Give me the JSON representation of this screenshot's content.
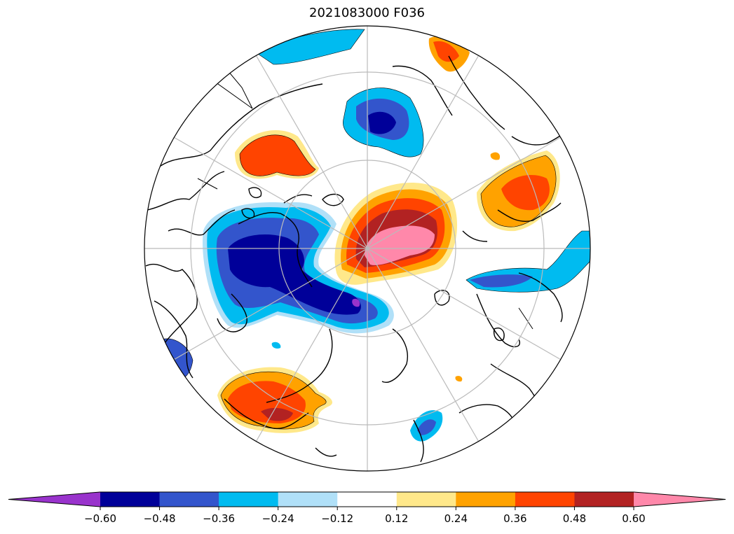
{
  "title": "2021083000 F036",
  "colorbar": {
    "ticks": [
      "−0.60",
      "−0.48",
      "−0.36",
      "−0.24",
      "−0.12",
      "0.12",
      "0.24",
      "0.36",
      "0.48",
      "0.60"
    ],
    "colors": [
      "#9933cc",
      "#000099",
      "#3355cc",
      "#00bbf0",
      "#b0e0f8",
      "#ffffff",
      "#ffe88a",
      "#ffa200",
      "#ff4400",
      "#b22222",
      "#ff88aa"
    ],
    "extend": "both"
  },
  "map": {
    "projection": "north-polar-stereographic",
    "grid": true
  }
}
